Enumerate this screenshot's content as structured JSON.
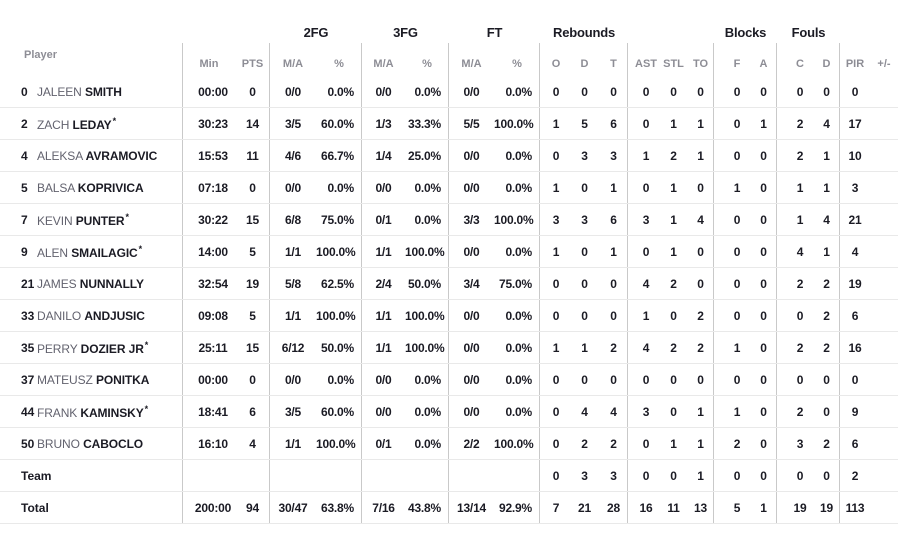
{
  "colors": {
    "text_dark": "#1b1b24",
    "text_gray": "#8d8d95",
    "line_vertical": "#c9c9c9",
    "line_horizontal": "#e9e9e9",
    "background": "#ffffff"
  },
  "table": {
    "group_labels": {
      "fg2": "2FG",
      "fg3": "3FG",
      "ft": "FT",
      "rebounds": "Rebounds",
      "blocks": "Blocks",
      "fouls": "Fouls"
    },
    "col_labels": {
      "player": "Player",
      "min": "Min",
      "pts": "PTS",
      "ma": "M/A",
      "pct": "%",
      "reb_o": "O",
      "reb_d": "D",
      "reb_t": "T",
      "ast": "AST",
      "stl": "STL",
      "to": "TO",
      "blk_f": "F",
      "blk_a": "A",
      "foul_c": "C",
      "foul_d": "D",
      "pir": "PIR",
      "pm": "+/-"
    },
    "rows": [
      {
        "type": "player",
        "num": "0",
        "first": "JALEEN",
        "last": "SMITH",
        "star": false,
        "min": "00:00",
        "pts": "0",
        "m2": "0/0",
        "p2": "0.0%",
        "m3": "0/0",
        "p3": "0.0%",
        "mf": "0/0",
        "pf": "0.0%",
        "ro": "0",
        "rd": "0",
        "rt": "0",
        "ast": "0",
        "stl": "0",
        "to": "0",
        "bf": "0",
        "ba": "0",
        "fc": "0",
        "fd": "0",
        "pir": "0",
        "pm": ""
      },
      {
        "type": "player",
        "num": "2",
        "first": "ZACH",
        "last": "LEDAY",
        "star": true,
        "min": "30:23",
        "pts": "14",
        "m2": "3/5",
        "p2": "60.0%",
        "m3": "1/3",
        "p3": "33.3%",
        "mf": "5/5",
        "pf": "100.0%",
        "ro": "1",
        "rd": "5",
        "rt": "6",
        "ast": "0",
        "stl": "1",
        "to": "1",
        "bf": "0",
        "ba": "1",
        "fc": "2",
        "fd": "4",
        "pir": "17",
        "pm": ""
      },
      {
        "type": "player",
        "num": "4",
        "first": "ALEKSA",
        "last": "AVRAMOVIC",
        "star": false,
        "min": "15:53",
        "pts": "11",
        "m2": "4/6",
        "p2": "66.7%",
        "m3": "1/4",
        "p3": "25.0%",
        "mf": "0/0",
        "pf": "0.0%",
        "ro": "0",
        "rd": "3",
        "rt": "3",
        "ast": "1",
        "stl": "2",
        "to": "1",
        "bf": "0",
        "ba": "0",
        "fc": "2",
        "fd": "1",
        "pir": "10",
        "pm": ""
      },
      {
        "type": "player",
        "num": "5",
        "first": "BALSA",
        "last": "KOPRIVICA",
        "star": false,
        "min": "07:18",
        "pts": "0",
        "m2": "0/0",
        "p2": "0.0%",
        "m3": "0/0",
        "p3": "0.0%",
        "mf": "0/0",
        "pf": "0.0%",
        "ro": "1",
        "rd": "0",
        "rt": "1",
        "ast": "0",
        "stl": "1",
        "to": "0",
        "bf": "1",
        "ba": "0",
        "fc": "1",
        "fd": "1",
        "pir": "3",
        "pm": ""
      },
      {
        "type": "player",
        "num": "7",
        "first": "KEVIN",
        "last": "PUNTER",
        "star": true,
        "min": "30:22",
        "pts": "15",
        "m2": "6/8",
        "p2": "75.0%",
        "m3": "0/1",
        "p3": "0.0%",
        "mf": "3/3",
        "pf": "100.0%",
        "ro": "3",
        "rd": "3",
        "rt": "6",
        "ast": "3",
        "stl": "1",
        "to": "4",
        "bf": "0",
        "ba": "0",
        "fc": "1",
        "fd": "4",
        "pir": "21",
        "pm": ""
      },
      {
        "type": "player",
        "num": "9",
        "first": "ALEN",
        "last": "SMAILAGIC",
        "star": true,
        "min": "14:00",
        "pts": "5",
        "m2": "1/1",
        "p2": "100.0%",
        "m3": "1/1",
        "p3": "100.0%",
        "mf": "0/0",
        "pf": "0.0%",
        "ro": "1",
        "rd": "0",
        "rt": "1",
        "ast": "0",
        "stl": "1",
        "to": "0",
        "bf": "0",
        "ba": "0",
        "fc": "4",
        "fd": "1",
        "pir": "4",
        "pm": ""
      },
      {
        "type": "player",
        "num": "21",
        "first": "JAMES",
        "last": "NUNNALLY",
        "star": false,
        "min": "32:54",
        "pts": "19",
        "m2": "5/8",
        "p2": "62.5%",
        "m3": "2/4",
        "p3": "50.0%",
        "mf": "3/4",
        "pf": "75.0%",
        "ro": "0",
        "rd": "0",
        "rt": "0",
        "ast": "4",
        "stl": "2",
        "to": "0",
        "bf": "0",
        "ba": "0",
        "fc": "2",
        "fd": "2",
        "pir": "19",
        "pm": ""
      },
      {
        "type": "player",
        "num": "33",
        "first": "DANILO",
        "last": "ANDJUSIC",
        "star": false,
        "min": "09:08",
        "pts": "5",
        "m2": "1/1",
        "p2": "100.0%",
        "m3": "1/1",
        "p3": "100.0%",
        "mf": "0/0",
        "pf": "0.0%",
        "ro": "0",
        "rd": "0",
        "rt": "0",
        "ast": "1",
        "stl": "0",
        "to": "2",
        "bf": "0",
        "ba": "0",
        "fc": "0",
        "fd": "2",
        "pir": "6",
        "pm": ""
      },
      {
        "type": "player",
        "num": "35",
        "first": "PERRY",
        "last": "DOZIER JR",
        "star": true,
        "min": "25:11",
        "pts": "15",
        "m2": "6/12",
        "p2": "50.0%",
        "m3": "1/1",
        "p3": "100.0%",
        "mf": "0/0",
        "pf": "0.0%",
        "ro": "1",
        "rd": "1",
        "rt": "2",
        "ast": "4",
        "stl": "2",
        "to": "2",
        "bf": "1",
        "ba": "0",
        "fc": "2",
        "fd": "2",
        "pir": "16",
        "pm": ""
      },
      {
        "type": "player",
        "num": "37",
        "first": "MATEUSZ",
        "last": "PONITKA",
        "star": false,
        "min": "00:00",
        "pts": "0",
        "m2": "0/0",
        "p2": "0.0%",
        "m3": "0/0",
        "p3": "0.0%",
        "mf": "0/0",
        "pf": "0.0%",
        "ro": "0",
        "rd": "0",
        "rt": "0",
        "ast": "0",
        "stl": "0",
        "to": "0",
        "bf": "0",
        "ba": "0",
        "fc": "0",
        "fd": "0",
        "pir": "0",
        "pm": ""
      },
      {
        "type": "player",
        "num": "44",
        "first": "FRANK",
        "last": "KAMINSKY",
        "star": true,
        "min": "18:41",
        "pts": "6",
        "m2": "3/5",
        "p2": "60.0%",
        "m3": "0/0",
        "p3": "0.0%",
        "mf": "0/0",
        "pf": "0.0%",
        "ro": "0",
        "rd": "4",
        "rt": "4",
        "ast": "3",
        "stl": "0",
        "to": "1",
        "bf": "1",
        "ba": "0",
        "fc": "2",
        "fd": "0",
        "pir": "9",
        "pm": ""
      },
      {
        "type": "player",
        "num": "50",
        "first": "BRUNO",
        "last": "CABOCLO",
        "star": false,
        "min": "16:10",
        "pts": "4",
        "m2": "1/1",
        "p2": "100.0%",
        "m3": "0/1",
        "p3": "0.0%",
        "mf": "2/2",
        "pf": "100.0%",
        "ro": "0",
        "rd": "2",
        "rt": "2",
        "ast": "0",
        "stl": "1",
        "to": "1",
        "bf": "2",
        "ba": "0",
        "fc": "3",
        "fd": "2",
        "pir": "6",
        "pm": ""
      },
      {
        "type": "team",
        "label": "Team",
        "min": "",
        "pts": "",
        "m2": "",
        "p2": "",
        "m3": "",
        "p3": "",
        "mf": "",
        "pf": "",
        "ro": "0",
        "rd": "3",
        "rt": "3",
        "ast": "0",
        "stl": "0",
        "to": "1",
        "bf": "0",
        "ba": "0",
        "fc": "0",
        "fd": "0",
        "pir": "2",
        "pm": ""
      },
      {
        "type": "total",
        "label": "Total",
        "min": "200:00",
        "pts": "94",
        "m2": "30/47",
        "p2": "63.8%",
        "m3": "7/16",
        "p3": "43.8%",
        "mf": "13/14",
        "pf": "92.9%",
        "ro": "7",
        "rd": "21",
        "rt": "28",
        "ast": "16",
        "stl": "11",
        "to": "13",
        "bf": "5",
        "ba": "1",
        "fc": "19",
        "fd": "19",
        "pir": "113",
        "pm": ""
      }
    ]
  }
}
